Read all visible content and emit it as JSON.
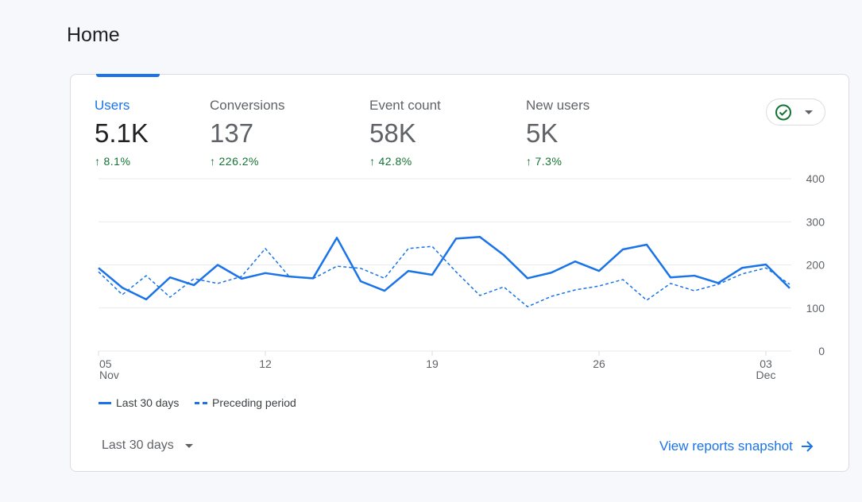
{
  "page_title": "Home",
  "metrics": [
    {
      "label": "Users",
      "value": "5.1K",
      "change": "8.1%"
    },
    {
      "label": "Conversions",
      "value": "137",
      "change": "226.2%"
    },
    {
      "label": "Event count",
      "value": "58K",
      "change": "42.8%"
    },
    {
      "label": "New users",
      "value": "5K",
      "change": "7.3%"
    }
  ],
  "colors": {
    "accent": "#1a73e8",
    "positive": "#137333"
  },
  "chart_data": {
    "type": "line",
    "ylim": [
      0,
      400
    ],
    "yticks": [
      "0",
      "100",
      "200",
      "300",
      "400"
    ],
    "xticks": [
      {
        "day": 0,
        "label": "05",
        "sub": "Nov"
      },
      {
        "day": 7,
        "label": "12",
        "sub": ""
      },
      {
        "day": 14,
        "label": "19",
        "sub": ""
      },
      {
        "day": 21,
        "label": "26",
        "sub": ""
      },
      {
        "day": 28,
        "label": "03",
        "sub": "Dec"
      }
    ],
    "legend": [
      "Last 30 days",
      "Preceding period"
    ],
    "series": [
      {
        "name": "Last 30 days",
        "style": "solid",
        "values": [
          193,
          147,
          120,
          171,
          153,
          200,
          168,
          181,
          173,
          169,
          263,
          162,
          140,
          186,
          177,
          261,
          265,
          223,
          169,
          182,
          208,
          186,
          236,
          247,
          171,
          175,
          158,
          193,
          201,
          146
        ]
      },
      {
        "name": "Preceding period",
        "style": "dashed",
        "values": [
          184,
          131,
          175,
          125,
          168,
          157,
          173,
          238,
          173,
          168,
          197,
          192,
          169,
          238,
          243,
          184,
          129,
          149,
          103,
          127,
          142,
          151,
          166,
          118,
          157,
          140,
          155,
          179,
          193,
          155
        ]
      }
    ]
  },
  "footer": {
    "range_label": "Last 30 days",
    "link_label": "View reports snapshot"
  }
}
